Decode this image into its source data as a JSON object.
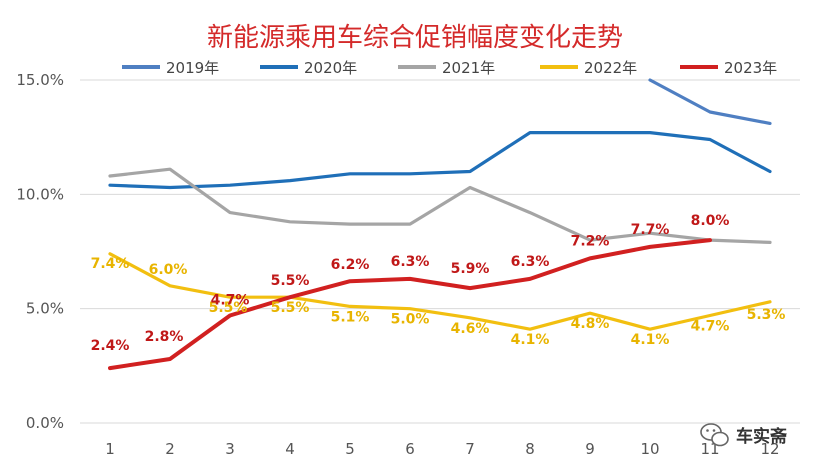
{
  "chart_data": {
    "type": "line",
    "title": "新能源乘用车综合促销幅度变化走势",
    "xlabel": "",
    "ylabel": "",
    "categories": [
      "1",
      "2",
      "3",
      "4",
      "5",
      "6",
      "7",
      "8",
      "9",
      "10",
      "11",
      "12"
    ],
    "ylim": [
      0,
      15
    ],
    "yticks": [
      "0.0%",
      "5.0%",
      "10.0%",
      "15.0%"
    ],
    "ytick_values": [
      0,
      5,
      10,
      15
    ],
    "grid": true,
    "legend_position": "top",
    "series": [
      {
        "name": "2019年",
        "color": "#4f7fc2",
        "values": [
          null,
          null,
          null,
          null,
          null,
          null,
          null,
          null,
          null,
          15.1,
          13.6,
          13.1
        ],
        "labels": []
      },
      {
        "name": "2020年",
        "color": "#1f6fb8",
        "values": [
          10.4,
          10.3,
          10.4,
          10.6,
          10.9,
          10.9,
          11.0,
          12.7,
          12.7,
          12.7,
          12.4,
          11.0
        ],
        "labels": []
      },
      {
        "name": "2021年",
        "color": "#a5a5a5",
        "values": [
          10.8,
          11.1,
          9.2,
          8.8,
          8.7,
          8.7,
          10.3,
          9.2,
          8.0,
          8.3,
          8.0,
          7.9
        ],
        "labels": []
      },
      {
        "name": "2022年",
        "color": "#f2bf10",
        "values": [
          7.4,
          6.0,
          5.5,
          5.5,
          5.1,
          5.0,
          4.6,
          4.1,
          4.8,
          4.1,
          4.7,
          5.3
        ],
        "labels": [
          "7.4%",
          "6.0%",
          "5.5%",
          "5.5%",
          "5.1%",
          "5.0%",
          "4.6%",
          "4.1%",
          "4.8%",
          "4.1%",
          "4.7%",
          "5.3%"
        ]
      },
      {
        "name": "2023年",
        "color": "#d12020",
        "values": [
          2.4,
          2.8,
          4.7,
          5.5,
          6.2,
          6.3,
          5.9,
          6.3,
          7.2,
          7.7,
          8.0,
          null
        ],
        "labels": [
          "2.4%",
          "2.8%",
          "4.7%",
          "5.5%",
          "6.2%",
          "6.3%",
          "5.9%",
          "6.3%",
          "7.2%",
          "7.7%",
          "8.0%",
          null
        ]
      }
    ]
  },
  "watermark": {
    "text": "车实斋",
    "icon": "wechat-icon"
  }
}
